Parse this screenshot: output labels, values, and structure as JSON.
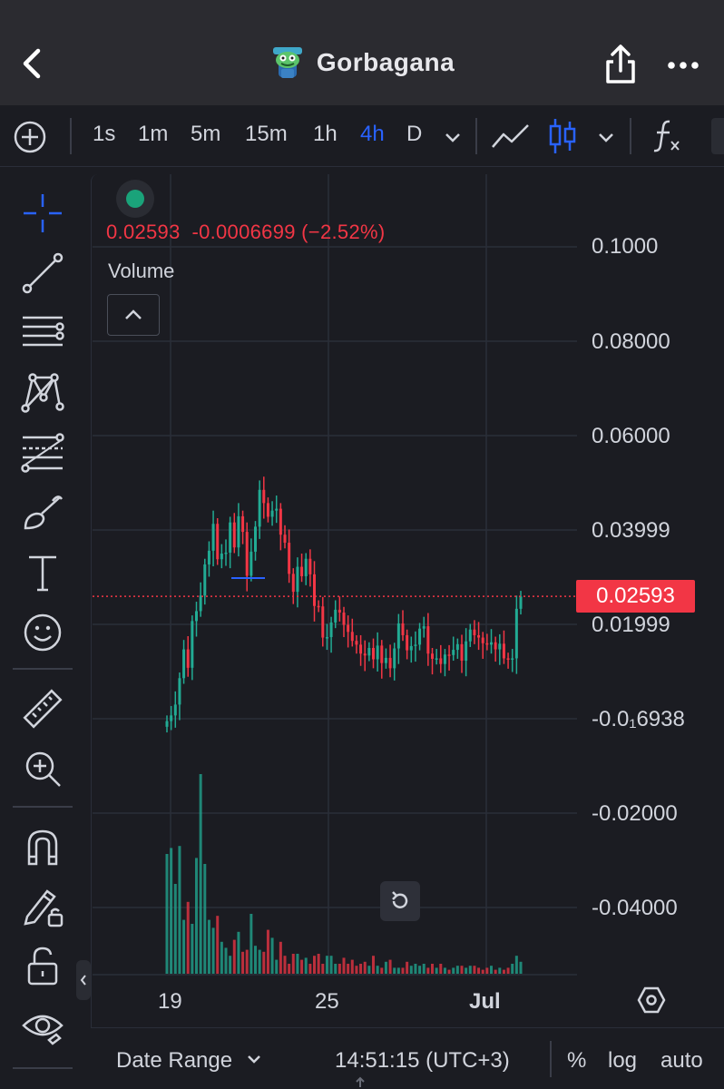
{
  "header": {
    "title": "Gorbagana",
    "back_icon": "chevron-left-icon",
    "share_icon": "share-icon",
    "more_icon": "more-horizontal-icon"
  },
  "toolbar": {
    "intervals": [
      "1s",
      "1m",
      "5m",
      "15m",
      "1h",
      "4h",
      "D"
    ],
    "active_interval": "4h"
  },
  "legend": {
    "ohlc_text": "0.02593  -0.0006699 (−2.52%)",
    "volume_label": "Volume"
  },
  "price_axis": {
    "labels": [
      "0.1000",
      "0.08000",
      "0.06000",
      "0.03999",
      "0.01999",
      "-0.0₁6938",
      "-0.02000",
      "-0.04000"
    ],
    "current_price": "0.02593"
  },
  "time_axis": {
    "labels": [
      "19",
      "25",
      "Jul"
    ]
  },
  "bottom_bar": {
    "date_range": "Date Range",
    "time": "14:51:15 (UTC+3)",
    "percent": "%",
    "log": "log",
    "auto": "auto"
  },
  "colors": {
    "up": "#22ab94",
    "down": "#f23645",
    "accent": "#2962ff",
    "background": "#1b1c22"
  },
  "chart_data": {
    "type": "candlestick",
    "symbol": "Gorbagana",
    "interval": "4h",
    "current_price": 0.02593,
    "change": -0.0006699,
    "change_pct": -2.52,
    "ylim": [
      -0.05,
      0.11
    ],
    "x_tick_labels": [
      "19",
      "25",
      "Jul"
    ],
    "close": [
      -0.0005,
      0.0007,
      0.003,
      0.0086,
      0.0147,
      0.0108,
      0.0207,
      0.0228,
      0.0261,
      0.0327,
      0.0356,
      0.0413,
      0.0338,
      0.035,
      0.0352,
      0.0416,
      0.0363,
      0.0429,
      0.0396,
      0.0303,
      0.0354,
      0.0407,
      0.0485,
      0.0457,
      0.0428,
      0.0441,
      0.0445,
      0.039,
      0.0373,
      0.0307,
      0.0269,
      0.0322,
      0.0302,
      0.0339,
      0.0306,
      0.0239,
      0.0238,
      0.0172,
      0.0173,
      0.0204,
      0.0231,
      0.0225,
      0.0199,
      0.0184,
      0.0165,
      0.0157,
      0.0138,
      0.0134,
      0.015,
      0.0126,
      0.0155,
      0.0118,
      0.0129,
      0.0107,
      0.0149,
      0.0202,
      0.0177,
      0.0145,
      0.0154,
      0.0157,
      0.0191,
      0.0196,
      0.0138,
      0.0127,
      0.0128,
      0.0116,
      0.0136,
      0.0135,
      0.0146,
      0.0158,
      0.0123,
      0.0164,
      0.0189,
      0.0177,
      0.0172,
      0.016,
      0.0157,
      0.0162,
      0.0147,
      0.0159,
      0.0128,
      0.0125,
      0.0128,
      0.0233,
      0.0259
    ],
    "volume": [
      0.6,
      0.63,
      0.45,
      0.64,
      0.27,
      0.36,
      0.25,
      0.58,
      1.0,
      0.55,
      0.27,
      0.23,
      0.29,
      0.16,
      0.13,
      0.09,
      0.17,
      0.21,
      0.11,
      0.12,
      0.3,
      0.14,
      0.12,
      0.11,
      0.22,
      0.18,
      0.07,
      0.16,
      0.09,
      0.05,
      0.1,
      0.1,
      0.07,
      0.08,
      0.05,
      0.09,
      0.1,
      0.05,
      0.09,
      0.09,
      0.05,
      0.05,
      0.08,
      0.05,
      0.07,
      0.04,
      0.05,
      0.06,
      0.04,
      0.09,
      0.04,
      0.03,
      0.06,
      0.07,
      0.03,
      0.03,
      0.03,
      0.06,
      0.04,
      0.05,
      0.04,
      0.05,
      0.03,
      0.05,
      0.03,
      0.05,
      0.03,
      0.02,
      0.03,
      0.04,
      0.04,
      0.03,
      0.04,
      0.04,
      0.03,
      0.02,
      0.03,
      0.04,
      0.02,
      0.03,
      0.02,
      0.03,
      0.05,
      0.09,
      0.06
    ]
  }
}
